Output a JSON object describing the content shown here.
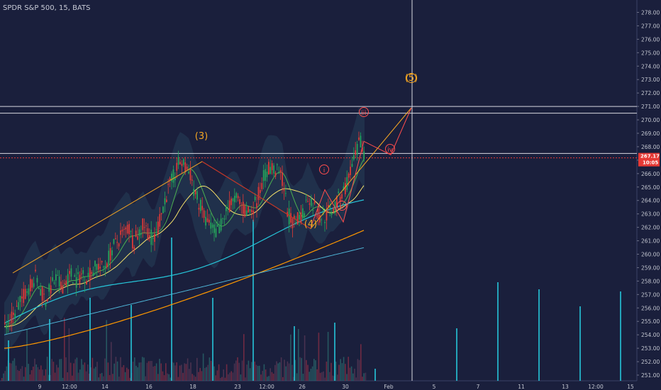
{
  "header": {
    "symbol_line": "SPDR S&P 500, 15, BATS"
  },
  "chart_data": {
    "type": "candlestick",
    "title": "SPDR S&P 500, 15, BATS",
    "ylim": [
      251.0,
      278.5
    ],
    "y_ticks": [
      "278.00",
      "277.00",
      "276.00",
      "275.00",
      "274.00",
      "273.00",
      "272.00",
      "271.00",
      "270.00",
      "269.00",
      "268.00",
      "267.00",
      "266.00",
      "265.00",
      "264.00",
      "263.00",
      "262.00",
      "261.00",
      "260.00",
      "259.00",
      "258.00",
      "257.00",
      "256.00",
      "255.00",
      "254.00",
      "253.00",
      "252.00",
      "251.00"
    ],
    "x_ticks": [
      "9",
      "12:00",
      "14",
      "16",
      "18",
      "23",
      "12:00",
      "26",
      "30",
      "Feb",
      "5",
      "7",
      "11",
      "13",
      "12:00",
      "15"
    ],
    "current_price": "267.17",
    "countdown": "10:05",
    "horizontal_levels": [
      271.0,
      270.5,
      267.5
    ],
    "crosshair_x_label": "Feb",
    "elliott_labels": [
      {
        "text": "(3)",
        "price": 268.5,
        "color": "#f5a623"
      },
      {
        "text": "(4)",
        "price": 260.9,
        "color": "#f5a623"
      },
      {
        "text": "(5)",
        "price": 271.2,
        "color": "#f5a623"
      },
      {
        "text": "i",
        "price": 265.0,
        "color": "#ff4d4d"
      },
      {
        "text": "ii",
        "price": 261.7,
        "color": "#ff4d4d"
      },
      {
        "text": "iii",
        "price": 268.7,
        "color": "#ff4d4d"
      },
      {
        "text": "iv",
        "price": 266.3,
        "color": "#ff4d4d"
      }
    ],
    "wave_path": [
      258.6,
      266.9,
      261.9,
      270.9
    ],
    "sub_wave_path": [
      262.0,
      264.8,
      262.4,
      268.4,
      267.4,
      270.9
    ],
    "series": [
      {
        "name": "price",
        "close_path": [
          254.6,
          255.0,
          255.6,
          256.4,
          257.2,
          257.8,
          258.3,
          257.2,
          256.6,
          257.6,
          258.2,
          257.5,
          258.1,
          258.5,
          258.0,
          258.6,
          258.3,
          258.8,
          259.2,
          258.9,
          259.6,
          260.5,
          261.0,
          261.5,
          262.0,
          260.8,
          261.6,
          262.2,
          261.5,
          261.0,
          262.3,
          264.0,
          265.0,
          266.0,
          266.9,
          266.5,
          266.0,
          264.5,
          263.5,
          262.5,
          262.0,
          261.6,
          262.2,
          263.2,
          263.8,
          264.1,
          263.5,
          263.0,
          263.4,
          264.0,
          265.5,
          266.4,
          266.3,
          266.1,
          265.5,
          263.0,
          262.2,
          262.6,
          263.1,
          264.4,
          263.6,
          262.9,
          262.7,
          263.2,
          263.5,
          264.2,
          264.8,
          266.0,
          267.0,
          268.4,
          267.4
        ]
      },
      {
        "name": "ma-fast",
        "color": "#4caf50"
      },
      {
        "name": "ma-mid",
        "color": "#f7e36b"
      },
      {
        "name": "ma-slow",
        "color": "#26c6da"
      },
      {
        "name": "ma-200",
        "color": "#ff9800"
      }
    ]
  }
}
